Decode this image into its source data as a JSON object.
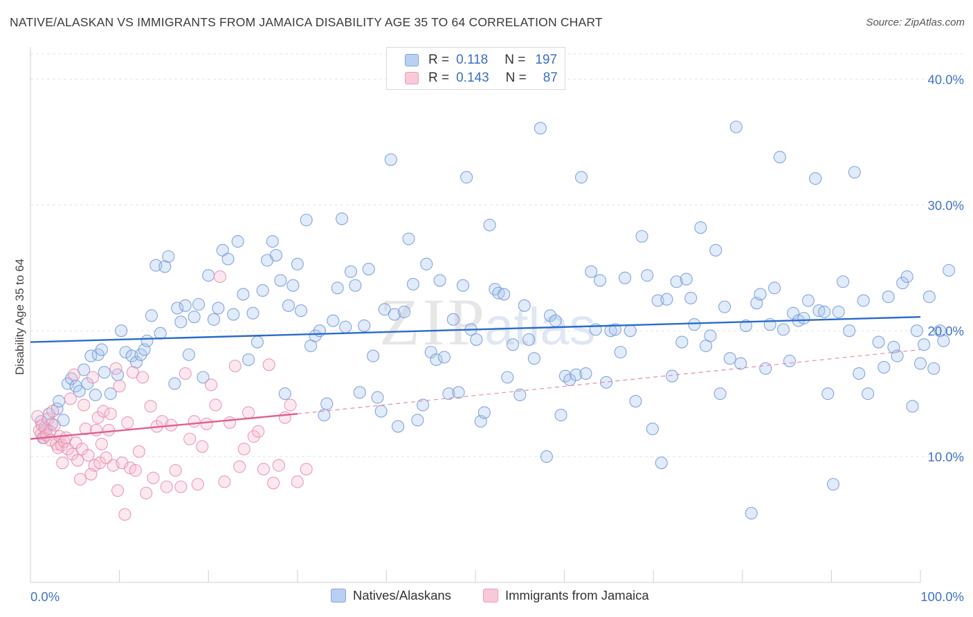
{
  "title": "NATIVE/ALASKAN VS IMMIGRANTS FROM JAMAICA DISABILITY AGE 35 TO 64 CORRELATION CHART",
  "source": "Source: ZipAtlas.com",
  "watermark": {
    "zip": "ZIP",
    "atlas": "atlas"
  },
  "legend_top": [
    {
      "r_label": "R =",
      "r_value": "0.118",
      "n_label": "N =",
      "n_value": "197"
    },
    {
      "r_label": "R =",
      "r_value": "0.143",
      "n_label": "N =",
      "n_value": "87"
    }
  ],
  "chart_data": {
    "type": "scatter",
    "title": "NATIVE/ALASKAN VS IMMIGRANTS FROM JAMAICA DISABILITY AGE 35 TO 64 CORRELATION CHART",
    "ylabel": "Disability Age 35 to 64",
    "xlim": [
      0,
      100
    ],
    "ylim": [
      0,
      42
    ],
    "x_tick_labels": [
      "0.0%",
      "100.0%"
    ],
    "y_ticks": [
      10,
      20,
      30,
      40
    ],
    "y_tick_labels": [
      "10.0%",
      "20.0%",
      "30.0%",
      "40.0%"
    ],
    "grid": true,
    "legend_position": "top-center",
    "series": [
      {
        "name": "Natives/Alaskans",
        "color": "#8fb1e8",
        "line_color": "#2a6bc9",
        "trend": {
          "x": [
            0,
            100
          ],
          "y": [
            19.1,
            21.1
          ]
        },
        "points": [
          [
            1.2,
            12.8
          ],
          [
            1.4,
            11.5
          ],
          [
            1.8,
            12.2
          ],
          [
            2.1,
            13.4
          ],
          [
            2.4,
            12.6
          ],
          [
            3.0,
            13.8
          ],
          [
            3.2,
            14.4
          ],
          [
            3.7,
            12.9
          ],
          [
            4.2,
            15.8
          ],
          [
            4.6,
            16.2
          ],
          [
            5.1,
            15.6
          ],
          [
            5.5,
            15.2
          ],
          [
            6.0,
            16.9
          ],
          [
            6.4,
            15.8
          ],
          [
            6.8,
            18.0
          ],
          [
            7.3,
            14.9
          ],
          [
            7.6,
            18.1
          ],
          [
            8.0,
            18.5
          ],
          [
            8.3,
            16.7
          ],
          [
            9.0,
            15.0
          ],
          [
            9.8,
            16.5
          ],
          [
            10.2,
            20.0
          ],
          [
            10.7,
            18.3
          ],
          [
            11.4,
            18.0
          ],
          [
            11.9,
            17.5
          ],
          [
            12.4,
            18.1
          ],
          [
            12.8,
            18.5
          ],
          [
            13.1,
            19.2
          ],
          [
            13.6,
            21.2
          ],
          [
            14.1,
            25.2
          ],
          [
            14.6,
            19.8
          ],
          [
            15.1,
            25.1
          ],
          [
            15.5,
            25.9
          ],
          [
            16.2,
            15.8
          ],
          [
            16.5,
            21.8
          ],
          [
            16.9,
            20.7
          ],
          [
            17.4,
            22.0
          ],
          [
            17.8,
            18.1
          ],
          [
            18.4,
            21.1
          ],
          [
            18.9,
            22.1
          ],
          [
            19.4,
            16.3
          ],
          [
            20.0,
            24.4
          ],
          [
            20.6,
            20.9
          ],
          [
            21.1,
            21.8
          ],
          [
            21.6,
            26.4
          ],
          [
            22.2,
            25.7
          ],
          [
            22.8,
            21.3
          ],
          [
            23.3,
            27.1
          ],
          [
            23.9,
            22.9
          ],
          [
            24.5,
            17.7
          ],
          [
            25.0,
            21.4
          ],
          [
            25.5,
            19.1
          ],
          [
            26.1,
            23.2
          ],
          [
            26.6,
            25.6
          ],
          [
            27.2,
            27.1
          ],
          [
            27.6,
            26.0
          ],
          [
            28.1,
            24.0
          ],
          [
            28.6,
            15.0
          ],
          [
            29.0,
            22.0
          ],
          [
            29.5,
            23.6
          ],
          [
            30.0,
            25.3
          ],
          [
            30.4,
            21.6
          ],
          [
            31.0,
            28.8
          ],
          [
            31.5,
            18.8
          ],
          [
            32.0,
            19.6
          ],
          [
            32.5,
            20.0
          ],
          [
            33.0,
            13.3
          ],
          [
            33.3,
            14.2
          ],
          [
            34.0,
            20.8
          ],
          [
            34.5,
            23.4
          ],
          [
            35.0,
            28.9
          ],
          [
            35.4,
            20.3
          ],
          [
            36.0,
            24.7
          ],
          [
            36.5,
            23.6
          ],
          [
            37.0,
            15.1
          ],
          [
            37.5,
            20.4
          ],
          [
            38.0,
            24.9
          ],
          [
            38.5,
            18.0
          ],
          [
            39.0,
            14.7
          ],
          [
            39.4,
            13.6
          ],
          [
            39.8,
            21.7
          ],
          [
            40.5,
            33.6
          ],
          [
            40.9,
            21.3
          ],
          [
            41.3,
            12.4
          ],
          [
            42.0,
            21.5
          ],
          [
            42.5,
            27.3
          ],
          [
            43.0,
            23.7
          ],
          [
            43.5,
            12.9
          ],
          [
            44.1,
            14.1
          ],
          [
            44.5,
            25.3
          ],
          [
            45.0,
            18.3
          ],
          [
            45.6,
            17.7
          ],
          [
            46.0,
            24.0
          ],
          [
            46.5,
            17.9
          ],
          [
            47.0,
            15.0
          ],
          [
            47.5,
            20.9
          ],
          [
            48.1,
            15.1
          ],
          [
            48.6,
            23.6
          ],
          [
            49.0,
            32.2
          ],
          [
            49.5,
            20.1
          ],
          [
            50.1,
            19.3
          ],
          [
            50.6,
            12.8
          ],
          [
            51.0,
            13.5
          ],
          [
            51.6,
            28.4
          ],
          [
            52.2,
            23.3
          ],
          [
            52.6,
            23.0
          ],
          [
            53.2,
            22.9
          ],
          [
            53.6,
            16.3
          ],
          [
            54.2,
            18.9
          ],
          [
            55.0,
            14.9
          ],
          [
            55.5,
            22.0
          ],
          [
            56.0,
            19.3
          ],
          [
            56.6,
            17.8
          ],
          [
            57.3,
            36.1
          ],
          [
            58.0,
            10.0
          ],
          [
            58.4,
            21.2
          ],
          [
            59.0,
            20.8
          ],
          [
            59.6,
            13.3
          ],
          [
            60.1,
            16.4
          ],
          [
            60.6,
            16.1
          ],
          [
            61.3,
            16.5
          ],
          [
            61.9,
            32.2
          ],
          [
            62.4,
            16.6
          ],
          [
            63.0,
            24.7
          ],
          [
            63.5,
            20.1
          ],
          [
            64.0,
            24.0
          ],
          [
            64.7,
            15.9
          ],
          [
            65.2,
            20.0
          ],
          [
            65.7,
            20.1
          ],
          [
            66.3,
            18.3
          ],
          [
            66.8,
            24.2
          ],
          [
            67.4,
            20.0
          ],
          [
            68.0,
            14.4
          ],
          [
            68.7,
            27.5
          ],
          [
            69.3,
            24.4
          ],
          [
            69.9,
            12.2
          ],
          [
            70.5,
            22.4
          ],
          [
            70.9,
            9.5
          ],
          [
            71.5,
            22.5
          ],
          [
            72.1,
            16.4
          ],
          [
            72.6,
            23.9
          ],
          [
            73.2,
            19.1
          ],
          [
            73.7,
            24.1
          ],
          [
            74.2,
            22.6
          ],
          [
            74.6,
            20.5
          ],
          [
            75.3,
            28.2
          ],
          [
            75.9,
            18.8
          ],
          [
            76.4,
            19.6
          ],
          [
            77.0,
            26.4
          ],
          [
            77.5,
            15.0
          ],
          [
            78.0,
            21.9
          ],
          [
            78.6,
            17.8
          ],
          [
            79.3,
            36.2
          ],
          [
            79.8,
            17.4
          ],
          [
            80.4,
            20.4
          ],
          [
            81.0,
            5.5
          ],
          [
            81.6,
            22.2
          ],
          [
            82.0,
            22.9
          ],
          [
            82.6,
            17.0
          ],
          [
            83.1,
            20.5
          ],
          [
            83.6,
            23.4
          ],
          [
            84.2,
            33.8
          ],
          [
            84.6,
            20.1
          ],
          [
            85.3,
            17.6
          ],
          [
            85.7,
            21.4
          ],
          [
            86.3,
            20.8
          ],
          [
            86.9,
            21.0
          ],
          [
            87.4,
            22.4
          ],
          [
            88.2,
            32.1
          ],
          [
            88.6,
            21.6
          ],
          [
            89.2,
            21.5
          ],
          [
            89.6,
            15.0
          ],
          [
            90.2,
            7.8
          ],
          [
            90.8,
            21.5
          ],
          [
            91.3,
            23.9
          ],
          [
            92.0,
            20.0
          ],
          [
            92.6,
            32.6
          ],
          [
            93.1,
            16.6
          ],
          [
            93.6,
            22.4
          ],
          [
            94.1,
            15.0
          ],
          [
            95.3,
            19.1
          ],
          [
            95.9,
            17.1
          ],
          [
            96.4,
            22.7
          ],
          [
            97.0,
            18.7
          ],
          [
            97.4,
            18.0
          ],
          [
            98.0,
            23.8
          ],
          [
            98.5,
            24.3
          ],
          [
            99.1,
            14.0
          ],
          [
            99.6,
            20.0
          ],
          [
            100.0,
            17.4
          ],
          [
            100.4,
            18.9
          ],
          [
            101.0,
            22.7
          ],
          [
            101.5,
            17.0
          ],
          [
            102.2,
            20.0
          ],
          [
            102.6,
            19.2
          ],
          [
            103.2,
            24.8
          ]
        ]
      },
      {
        "name": "Immigrants from Jamaica",
        "color": "#f4a7c0",
        "line_color": "#e0608a",
        "trend_solid": {
          "x": [
            0,
            30
          ],
          "y": [
            11.4,
            13.4
          ]
        },
        "trend_dashed": {
          "x": [
            30,
            100
          ],
          "y": [
            13.4,
            18.5
          ]
        },
        "points": [
          [
            0.8,
            13.2
          ],
          [
            1.0,
            12.1
          ],
          [
            1.2,
            11.8
          ],
          [
            1.3,
            12.5
          ],
          [
            1.5,
            11.5
          ],
          [
            1.6,
            12.3
          ],
          [
            1.8,
            11.7
          ],
          [
            2.0,
            13.0
          ],
          [
            2.2,
            12.0
          ],
          [
            2.3,
            11.3
          ],
          [
            2.5,
            13.6
          ],
          [
            2.7,
            12.5
          ],
          [
            2.9,
            11.0
          ],
          [
            3.1,
            10.7
          ],
          [
            3.3,
            11.6
          ],
          [
            3.5,
            10.9
          ],
          [
            3.6,
            9.5
          ],
          [
            3.8,
            11.2
          ],
          [
            4.0,
            11.5
          ],
          [
            4.2,
            10.6
          ],
          [
            4.5,
            14.6
          ],
          [
            4.7,
            10.2
          ],
          [
            4.9,
            16.5
          ],
          [
            5.1,
            11.1
          ],
          [
            5.3,
            9.7
          ],
          [
            5.6,
            8.2
          ],
          [
            5.8,
            10.6
          ],
          [
            6.0,
            14.1
          ],
          [
            6.2,
            12.2
          ],
          [
            6.5,
            10.1
          ],
          [
            6.8,
            8.6
          ],
          [
            7.0,
            16.3
          ],
          [
            7.2,
            9.3
          ],
          [
            7.4,
            12.1
          ],
          [
            7.6,
            13.1
          ],
          [
            7.8,
            9.5
          ],
          [
            8.0,
            11.0
          ],
          [
            8.2,
            13.6
          ],
          [
            8.5,
            9.9
          ],
          [
            8.8,
            12.1
          ],
          [
            9.0,
            13.4
          ],
          [
            9.3,
            9.3
          ],
          [
            9.6,
            17.0
          ],
          [
            9.8,
            7.3
          ],
          [
            10.0,
            15.6
          ],
          [
            10.3,
            9.5
          ],
          [
            10.6,
            5.4
          ],
          [
            10.9,
            12.7
          ],
          [
            11.2,
            9.1
          ],
          [
            11.5,
            16.7
          ],
          [
            11.8,
            8.9
          ],
          [
            12.2,
            10.4
          ],
          [
            12.6,
            16.3
          ],
          [
            13.0,
            7.1
          ],
          [
            13.5,
            14.0
          ],
          [
            13.8,
            8.3
          ],
          [
            14.2,
            12.4
          ],
          [
            14.8,
            12.8
          ],
          [
            15.3,
            7.6
          ],
          [
            15.8,
            12.5
          ],
          [
            16.3,
            8.9
          ],
          [
            16.9,
            7.6
          ],
          [
            17.4,
            16.6
          ],
          [
            17.9,
            11.4
          ],
          [
            18.4,
            12.8
          ],
          [
            18.8,
            7.8
          ],
          [
            19.3,
            10.8
          ],
          [
            19.8,
            12.6
          ],
          [
            20.3,
            15.7
          ],
          [
            20.8,
            14.1
          ],
          [
            21.3,
            24.3
          ],
          [
            21.8,
            8.0
          ],
          [
            22.4,
            12.7
          ],
          [
            23.0,
            17.2
          ],
          [
            23.5,
            9.2
          ],
          [
            24.0,
            10.6
          ],
          [
            24.5,
            13.5
          ],
          [
            25.1,
            11.6
          ],
          [
            25.6,
            12.0
          ],
          [
            26.2,
            9.0
          ],
          [
            26.8,
            17.3
          ],
          [
            27.3,
            7.9
          ],
          [
            27.9,
            9.3
          ],
          [
            28.6,
            13.1
          ],
          [
            29.2,
            14.1
          ],
          [
            30.0,
            8.0
          ],
          [
            31.0,
            9.0
          ]
        ]
      }
    ]
  },
  "bottom_legend": [
    {
      "label": "Natives/Alaskans",
      "color": "#b9d0f2",
      "border": "#7fa4e0"
    },
    {
      "label": "Immigrants from Jamaica",
      "color": "#f9c9d8",
      "border": "#ec9cb6"
    }
  ]
}
